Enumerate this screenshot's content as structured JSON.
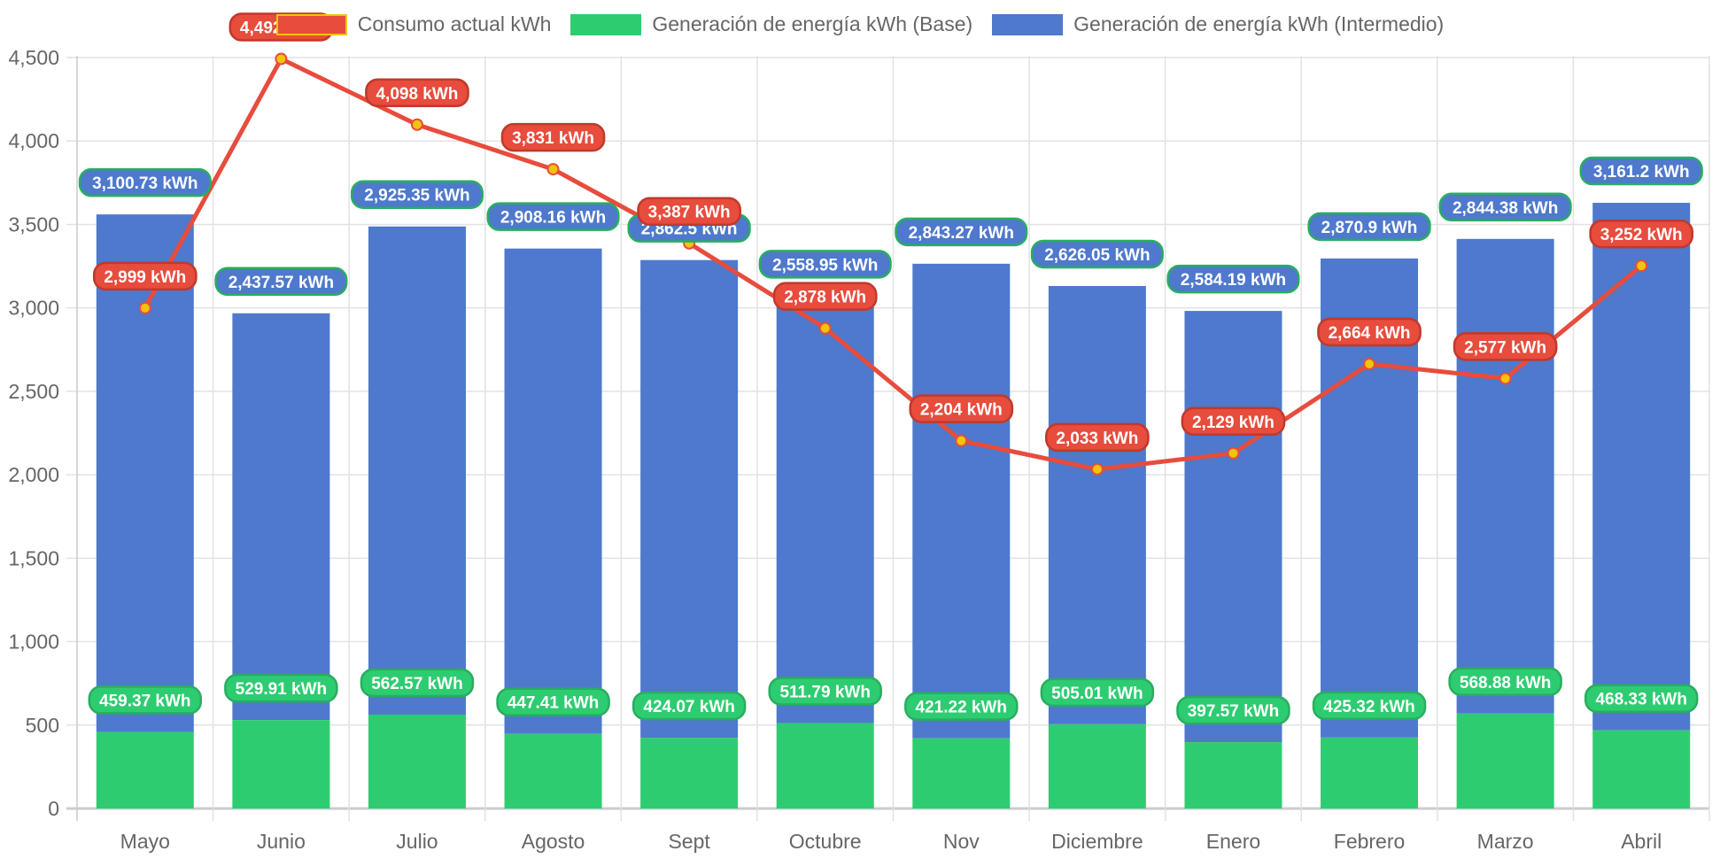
{
  "chart_data": {
    "type": "bar",
    "title": "",
    "xlabel": "",
    "ylabel": "",
    "ylim": [
      0,
      4500
    ],
    "yticks": [
      0,
      500,
      1000,
      1500,
      2000,
      2500,
      3000,
      3500,
      4000,
      4500
    ],
    "ytick_labels": [
      "0",
      "500",
      "1,000",
      "1,500",
      "2,000",
      "2,500",
      "3,000",
      "3,500",
      "4,000",
      "4,500"
    ],
    "grid": true,
    "stacked": true,
    "legend_position": "top",
    "categories": [
      "Mayo",
      "Junio",
      "Julio",
      "Agosto",
      "Sept",
      "Octubre",
      "Nov",
      "Diciembre",
      "Enero",
      "Febrero",
      "Marzo",
      "Abril"
    ],
    "series": [
      {
        "name": "Consumo actual kWh",
        "type": "line",
        "color": "#e74c3c",
        "point_color": "#f1c40f",
        "values": [
          2999,
          4492,
          4098,
          3831,
          3387,
          2878,
          2204,
          2033,
          2129,
          2664,
          2577,
          3252
        ],
        "labels": [
          "2,999 kWh",
          "4,492 kWh",
          "4,098 kWh",
          "3,831 kWh",
          "3,387 kWh",
          "2,878 kWh",
          "2,204 kWh",
          "2,033 kWh",
          "2,129 kWh",
          "2,664 kWh",
          "2,577 kWh",
          "3,252 kWh"
        ]
      },
      {
        "name": "Generación de energía kWh (Base)",
        "type": "bar",
        "color": "#2ecc71",
        "values": [
          459.37,
          529.91,
          562.57,
          447.41,
          424.07,
          511.79,
          421.22,
          505.01,
          397.57,
          425.32,
          568.88,
          468.33
        ],
        "labels": [
          "459.37 kWh",
          "529.91 kWh",
          "562.57 kWh",
          "447.41 kWh",
          "424.07 kWh",
          "511.79 kWh",
          "421.22 kWh",
          "505.01 kWh",
          "397.57 kWh",
          "425.32 kWh",
          "568.88 kWh",
          "468.33 kWh"
        ]
      },
      {
        "name": "Generación de energía kWh (Intermedio)",
        "type": "bar",
        "color": "#4e79cc",
        "values": [
          3100.73,
          2437.57,
          2925.35,
          2908.16,
          2862.5,
          2558.95,
          2843.27,
          2626.05,
          2584.19,
          2870.9,
          2844.38,
          3161.2
        ],
        "labels": [
          "3,100.73 kWh",
          "2,437.57 kWh",
          "2,925.35 kWh",
          "2,908.16 kWh",
          "2,862.5 kWh",
          "2,558.95 kWh",
          "2,843.27 kWh",
          "2,626.05 kWh",
          "2,584.19 kWh",
          "2,870.9 kWh",
          "2,844.38 kWh",
          "3,161.2 kWh"
        ]
      }
    ]
  },
  "legend": {
    "items": [
      {
        "label": "Consumo actual kWh",
        "color": "#e74c3c"
      },
      {
        "label": "Generación de energía kWh (Base)",
        "color": "#2ecc71"
      },
      {
        "label": "Generación de energía kWh (Intermedio)",
        "color": "#4e79cc"
      }
    ]
  }
}
